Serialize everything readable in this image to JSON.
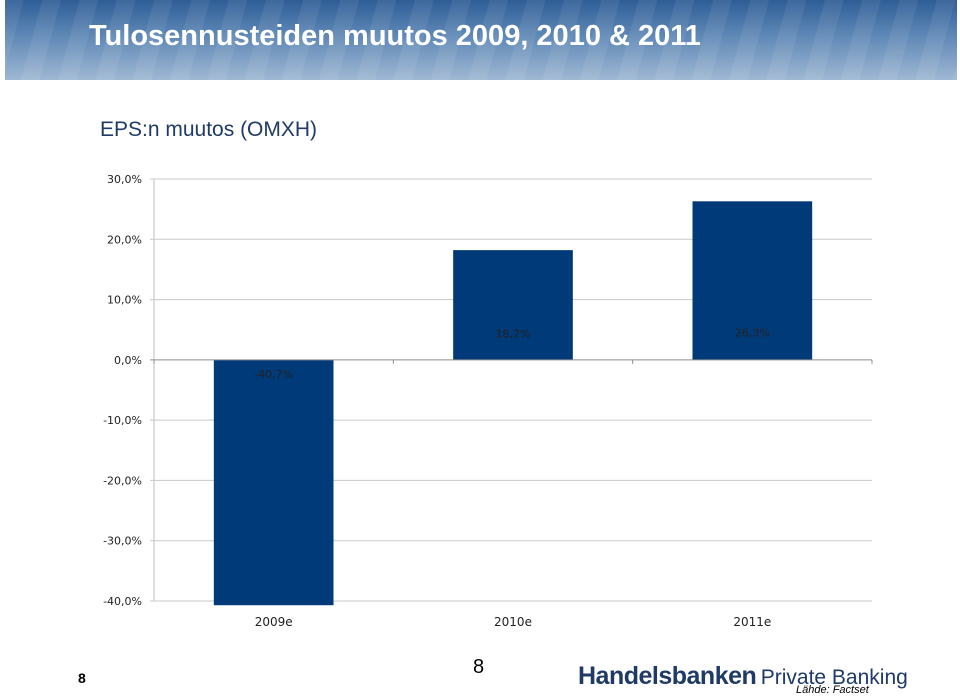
{
  "header": {
    "title": "Tulosennusteiden muutos 2009, 2010 & 2011"
  },
  "chart_data": {
    "type": "bar",
    "title": "EPS:n muutos (OMXH)",
    "categories": [
      "2009e",
      "2010e",
      "2011e"
    ],
    "values": [
      -40.7,
      18.2,
      26.3
    ],
    "data_labels": [
      "-40,7%",
      "18,2%",
      "26,3%"
    ],
    "ylim": [
      -40,
      30
    ],
    "yticks": [
      30,
      20,
      10,
      0,
      -10,
      -20,
      -30,
      -40
    ],
    "ytick_labels": [
      "30,0%",
      "20,0%",
      "10,0%",
      "0,0%",
      "-10,0%",
      "-20,0%",
      "-30,0%",
      "-40,0%"
    ],
    "grid": true,
    "legend": "none",
    "bar_color": "#003a78"
  },
  "footer": {
    "page_number_left": "8",
    "page_number_center": "8",
    "brand_name": "Handelsbanken",
    "brand_sub": "Private Banking",
    "source": "Lähde: Factset"
  }
}
